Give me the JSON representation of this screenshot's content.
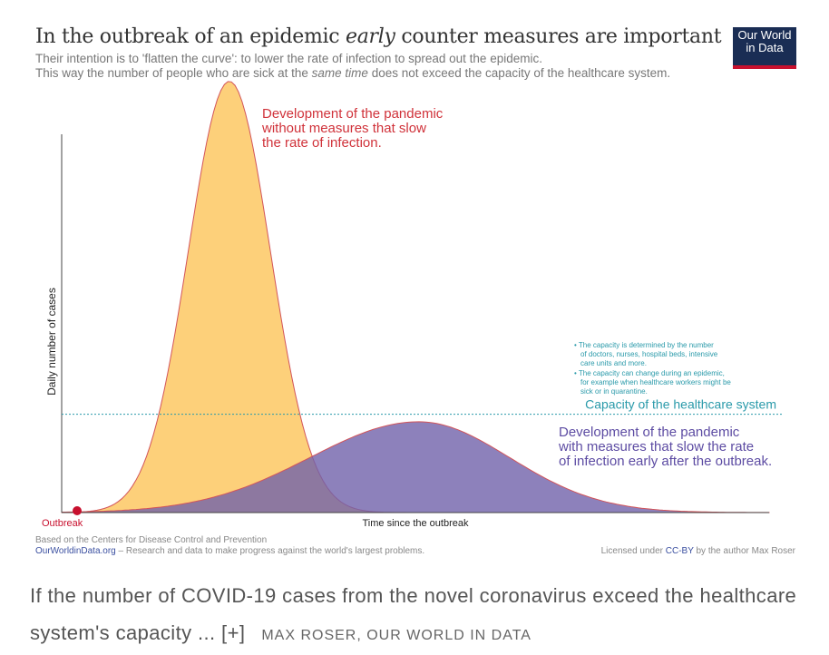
{
  "chart_data": {
    "type": "area",
    "title_parts": [
      "In the outbreak of an epidemic ",
      "early",
      " counter measures are important"
    ],
    "subtitle_parts": [
      "Their intention is to 'flatten the curve': to lower the rate of infection to spread out the epidemic.",
      "This way the number of people who are sick at the ",
      "same time",
      " does not exceed the capacity of the healthcare system."
    ],
    "xlabel": "Time since the outbreak",
    "ylabel": "Daily number of cases",
    "xlim": [
      0,
      100
    ],
    "ylim": [
      0,
      100
    ],
    "capacity": {
      "value": 26,
      "label": "Capacity of the healthcare system",
      "color": "#2a9aaa",
      "notes": [
        [
          "The capacity is determined by the number",
          "of doctors, nurses, hospital beds, intensive",
          "care units and more."
        ],
        [
          "The capacity can change during an epidemic,",
          "for example when healthcare workers might be",
          "sick or in quarantine."
        ]
      ]
    },
    "series": [
      {
        "name": "Without measures",
        "peak_time": 23.7,
        "peak_cases": 114,
        "spread_left": 5.8,
        "spread_right": 5.8,
        "fill": "#fdd07a",
        "stroke": "#d2545a",
        "label": [
          "Development of the pandemic",
          "without measures that slow",
          "the rate of infection."
        ],
        "label_color": "#d0323a"
      },
      {
        "name": "With measures",
        "peak_time": 50.5,
        "peak_cases": 24,
        "spread_left": 15.4,
        "spread_right": 12.8,
        "fill": "#7161aa",
        "stroke": "#d2545a",
        "opacity": 0.8,
        "label": [
          "Development of the pandemic",
          "with measures that slow the rate",
          "of infection early after the outbreak."
        ],
        "label_color": "#5d4ca3"
      }
    ],
    "outbreak_label": "Outbreak"
  },
  "logo": [
    "Our World",
    "in Data"
  ],
  "footer": {
    "source": "Based on the Centers for Disease Control and Prevention",
    "site": "OurWorldinData.org",
    "tagline": " – Research and data to make progress against the world's largest problems.",
    "license_pre": "Licensed under ",
    "license": "CC-BY",
    "license_post": " by the author Max Roser"
  },
  "caption": {
    "text": "If the number of COVID-19 cases from the novel coronavirus exceed the healthcare system's capacity ... [+]",
    "credit": "MAX ROSER, OUR WORLD IN DATA"
  }
}
